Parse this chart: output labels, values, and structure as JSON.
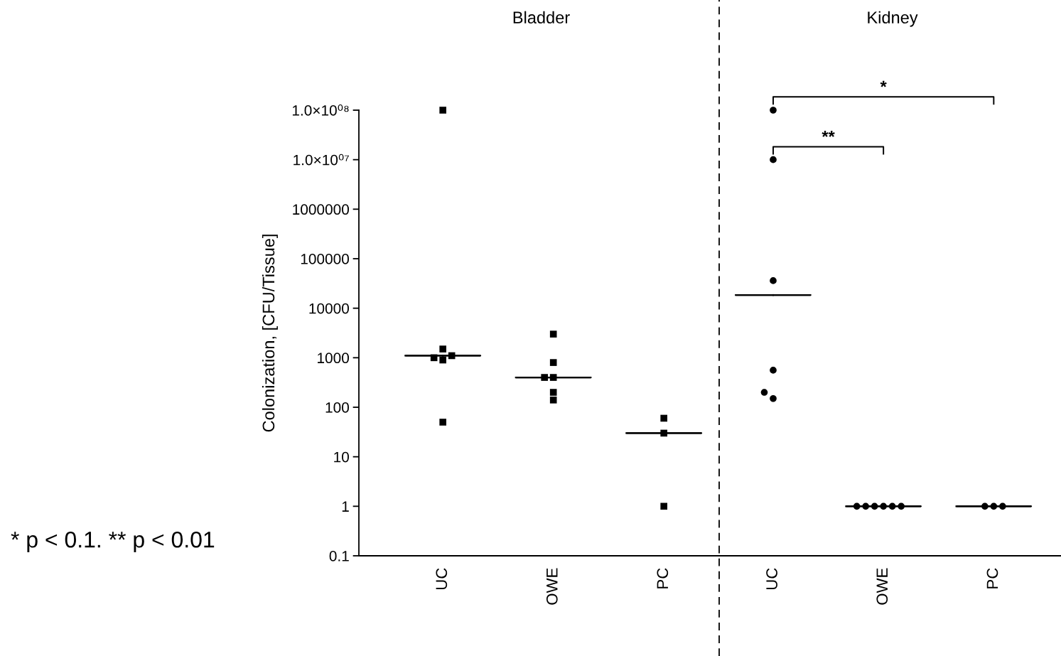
{
  "chart_data": [
    {
      "type": "scatter",
      "title": "Bladder",
      "ylabel": "Colonization, [CFU/Tissue]",
      "categories": [
        "UC",
        "OWE",
        "PC"
      ],
      "log": true,
      "ylim": [
        0.1,
        100000000
      ],
      "yticks": [
        0.1,
        1,
        10,
        100,
        1000,
        10000,
        100000,
        1000000,
        {
          "value": 10000000,
          "label": "1.0×10⁰⁷"
        },
        {
          "value": 100000000,
          "label": "1.0×10⁰⁸"
        }
      ],
      "marker": "square",
      "series": [
        {
          "color": "#000000",
          "x": [
            "UC",
            "UC",
            "UC",
            "UC",
            "UC",
            "UC",
            "OWE",
            "OWE",
            "OWE",
            "OWE",
            "OWE",
            "OWE",
            "PC",
            "PC",
            "PC"
          ],
          "values": [
            100000000,
            1500,
            900,
            1000,
            1100,
            50,
            3000,
            800,
            400,
            400,
            200,
            140,
            60,
            30,
            1
          ]
        },
        {
          "type": "box",
          "color": "#000000",
          "boxes": [
            {
              "low": 1100,
              "q1": 1100,
              "median": 1100,
              "q3": 1100,
              "high": 1100
            },
            {
              "low": 400,
              "q1": 400,
              "median": 400,
              "q3": 400,
              "high": 400
            },
            {
              "low": 30,
              "q1": 30,
              "median": 30,
              "q3": 30,
              "high": 30
            }
          ]
        }
      ],
      "annotations": [
        "* p < 0.1. ** p < 0.01"
      ]
    },
    {
      "type": "scatter",
      "title": "Kidney",
      "categories": [
        "UC",
        "OWE",
        "PC"
      ],
      "log": true,
      "ylim": [
        0.1,
        100000000
      ],
      "tick_labels": "x",
      "marker": "circle",
      "series": [
        {
          "color": "#000000",
          "x": [
            "UC",
            "UC",
            "UC",
            "UC",
            "UC",
            "UC",
            "OWE",
            "OWE",
            "OWE",
            "OWE",
            "OWE",
            "OWE",
            "PC",
            "PC",
            "PC"
          ],
          "values": [
            100000000,
            10000000,
            36000,
            560,
            150,
            200,
            1,
            1,
            1,
            1,
            1,
            1,
            1,
            1,
            1
          ]
        },
        {
          "type": "box",
          "color": "#000000",
          "boxes": [
            {
              "low": 18500,
              "q1": 18500,
              "median": 18500,
              "q3": 18500,
              "high": 18500
            },
            {
              "low": 1,
              "q1": 1,
              "median": 1,
              "q3": 1,
              "high": 1
            },
            {
              "low": 1,
              "q1": 1,
              "median": 1,
              "q3": 1,
              "high": 1
            }
          ]
        }
      ],
      "annotations": [
        "**",
        "*"
      ]
    }
  ]
}
